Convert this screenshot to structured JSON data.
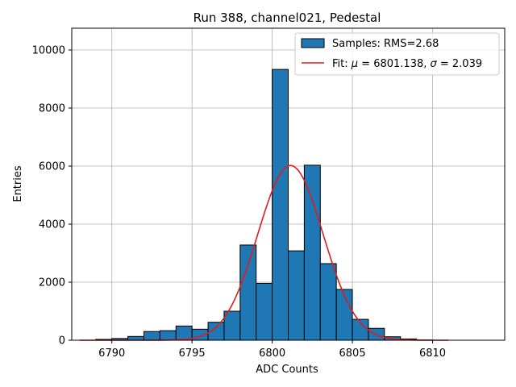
{
  "chart_data": {
    "type": "bar",
    "title": "Run 388, channel021, Pedestal",
    "xlabel": "ADC Counts",
    "ylabel": "Entries",
    "xlim": [
      6787.5,
      6814.5
    ],
    "ylim": [
      0,
      10750
    ],
    "xticks": [
      6790,
      6795,
      6800,
      6805,
      6810
    ],
    "yticks": [
      0,
      2000,
      4000,
      6000,
      8000,
      10000
    ],
    "grid": true,
    "legend_position": "top-right",
    "bar_color": "#1f77b4",
    "fit_color": "#e41a1c",
    "histogram": {
      "name": "Samples: RMS=2.68",
      "bins": [
        {
          "x0": 6789,
          "x1": 6790,
          "value": 30
        },
        {
          "x0": 6790,
          "x1": 6791,
          "value": 60
        },
        {
          "x0": 6791,
          "x1": 6792,
          "value": 130
        },
        {
          "x0": 6792,
          "x1": 6793,
          "value": 300
        },
        {
          "x0": 6793,
          "x1": 6794,
          "value": 330
        },
        {
          "x0": 6794,
          "x1": 6795,
          "value": 490
        },
        {
          "x0": 6795,
          "x1": 6796,
          "value": 380
        },
        {
          "x0": 6796,
          "x1": 6797,
          "value": 620
        },
        {
          "x0": 6797,
          "x1": 6798,
          "value": 1000
        },
        {
          "x0": 6798,
          "x1": 6799,
          "value": 3280
        },
        {
          "x0": 6799,
          "x1": 6800,
          "value": 1960
        },
        {
          "x0": 6800,
          "x1": 6801,
          "value": 9330
        },
        {
          "x0": 6801,
          "x1": 6802,
          "value": 3080
        },
        {
          "x0": 6802,
          "x1": 6803,
          "value": 6030
        },
        {
          "x0": 6803,
          "x1": 6804,
          "value": 2640
        },
        {
          "x0": 6804,
          "x1": 6805,
          "value": 1750
        },
        {
          "x0": 6805,
          "x1": 6806,
          "value": 720
        },
        {
          "x0": 6806,
          "x1": 6807,
          "value": 410
        },
        {
          "x0": 6807,
          "x1": 6808,
          "value": 120
        },
        {
          "x0": 6808,
          "x1": 6809,
          "value": 45
        },
        {
          "x0": 6809,
          "x1": 6810,
          "value": 10
        }
      ]
    },
    "fit": {
      "label_prefix": "Fit: ",
      "mu_symbol": "μ",
      "mu_value": " = 6801.138, ",
      "sigma_symbol": "σ",
      "sigma_value": " = 2.039",
      "mu": 6801.138,
      "sigma": 2.039,
      "amplitude": 6020,
      "x_range": [
        6788,
        6811
      ]
    }
  }
}
